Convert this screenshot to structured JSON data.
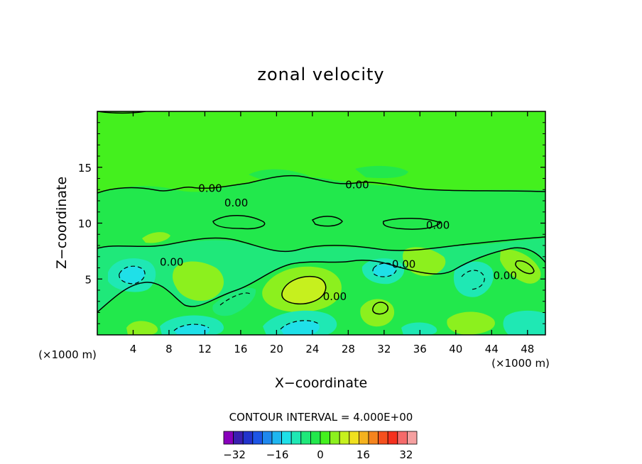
{
  "chart_data": {
    "type": "heatmap",
    "title": "zonal velocity",
    "xlabel": "X−coordinate",
    "ylabel": "Z−coordinate",
    "x_unit": "(×1000 m)",
    "x_unit_right": "(×1000 m)",
    "xlim": [
      0,
      50
    ],
    "ylim": [
      0,
      20
    ],
    "x_ticks": [
      4,
      8,
      12,
      16,
      20,
      24,
      28,
      32,
      36,
      40,
      44,
      48
    ],
    "y_ticks": [
      5,
      10,
      15
    ],
    "contour_interval_label": "CONTOUR INTERVAL = 4.000E+00",
    "contour_labels": [
      {
        "text": "0.00",
        "x": 12.6,
        "y": 12.8
      },
      {
        "text": "0.00",
        "x": 15.5,
        "y": 11.5
      },
      {
        "text": "0.00",
        "x": 29.0,
        "y": 13.1
      },
      {
        "text": "0.00",
        "x": 38.0,
        "y": 9.5
      },
      {
        "text": "0.00",
        "x": 26.5,
        "y": 3.1
      },
      {
        "text": "0.00",
        "x": 8.3,
        "y": 6.2
      },
      {
        "text": "0.00",
        "x": 34.2,
        "y": 6.0
      },
      {
        "text": "0.00",
        "x": 45.5,
        "y": 5.0
      }
    ],
    "colorbar": {
      "min": -36,
      "max": 36,
      "step": 4,
      "tick_labels": [
        "−32",
        "−16",
        "0",
        "16",
        "32"
      ],
      "tick_values": [
        -32,
        -16,
        0,
        16,
        32
      ],
      "colors": [
        "#8800bb",
        "#3a1fb0",
        "#2233cc",
        "#1d55e6",
        "#1f88ee",
        "#1fb6f0",
        "#1fe0e8",
        "#1fe8b4",
        "#1fe87a",
        "#22e84c",
        "#44f01e",
        "#8cf01e",
        "#c6f01e",
        "#f0e01e",
        "#f5b21e",
        "#f5841e",
        "#f5501e",
        "#f5301e",
        "#f56a6a",
        "#f5a0a0"
      ]
    },
    "features": [
      {
        "kind": "max",
        "x": 23.0,
        "y": 4.2,
        "value": 16
      },
      {
        "kind": "max",
        "x": 31.8,
        "y": 2.5,
        "value": 12
      },
      {
        "kind": "max",
        "x": 11.0,
        "y": 5.2,
        "value": 8
      },
      {
        "kind": "max",
        "x": 36.8,
        "y": 6.3,
        "value": 6
      },
      {
        "kind": "max",
        "x": 47.5,
        "y": 6.3,
        "value": 10
      },
      {
        "kind": "max",
        "x": 41.5,
        "y": 1.2,
        "value": 6
      },
      {
        "kind": "max",
        "x": 5.5,
        "y": 0.9,
        "value": 6
      },
      {
        "kind": "max",
        "x": 7.0,
        "y": 8.4,
        "value": 4
      },
      {
        "kind": "min",
        "x": 4.8,
        "y": 5.2,
        "value": -8
      },
      {
        "kind": "min",
        "x": 11.5,
        "y": 0.9,
        "value": -10
      },
      {
        "kind": "min",
        "x": 21.0,
        "y": 0.9,
        "value": -10
      },
      {
        "kind": "min",
        "x": 32.2,
        "y": 5.8,
        "value": -8
      },
      {
        "kind": "min",
        "x": 16.5,
        "y": 2.8,
        "value": -5
      },
      {
        "kind": "min",
        "x": 43.5,
        "y": 5.0,
        "value": -6
      },
      {
        "kind": "min",
        "x": 37.0,
        "y": 0.5,
        "value": -6
      },
      {
        "kind": "min",
        "x": 48.0,
        "y": 1.2,
        "value": -5
      }
    ]
  }
}
